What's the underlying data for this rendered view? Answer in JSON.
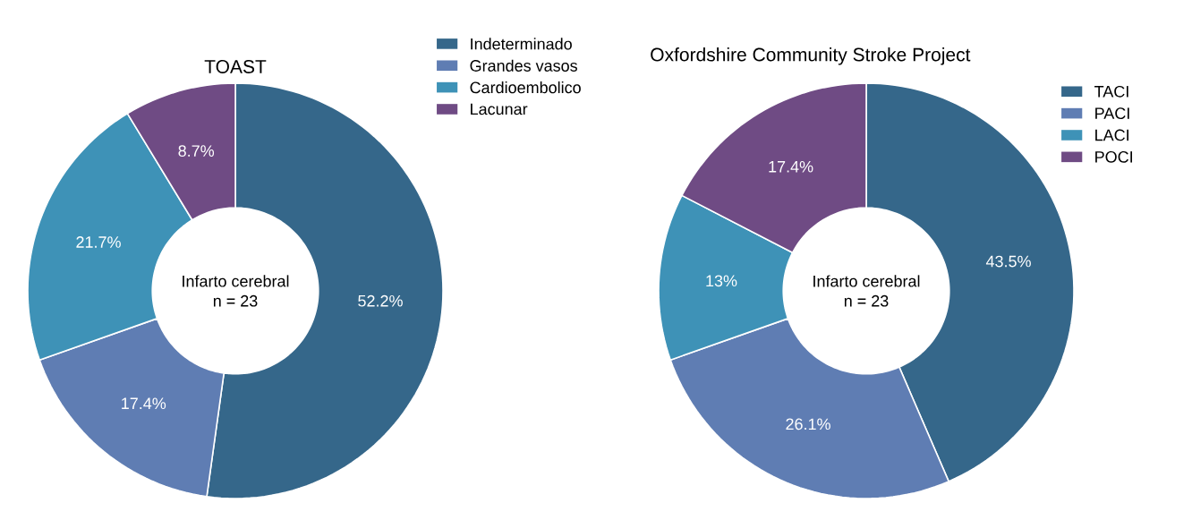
{
  "chart_data": [
    {
      "type": "donut",
      "title": "TOAST",
      "categories": [
        "Indeterminado",
        "Grandes vasos",
        "Cardioembolico",
        "Lacunar"
      ],
      "values": [
        52.2,
        17.4,
        21.7,
        8.7
      ],
      "value_labels": [
        "52.2%",
        "17.4%",
        "21.7%",
        "8.7%"
      ],
      "colors": [
        "#35678a",
        "#5f7db3",
        "#3e92b7",
        "#6f4b84"
      ],
      "annotations": [
        "Infarto cerebral",
        "n = 23"
      ],
      "legend": "top right"
    },
    {
      "type": "donut",
      "title": "Oxfordshire Community Stroke Project",
      "categories": [
        "TACI",
        "PACI",
        "LACI",
        "POCI"
      ],
      "values": [
        43.5,
        26.1,
        13,
        17.4
      ],
      "value_labels": [
        "43.5%",
        "26.1%",
        "13%",
        "17.4%"
      ],
      "colors": [
        "#35678a",
        "#5f7db3",
        "#3e92b7",
        "#6f4b84"
      ],
      "annotations": [
        "Infarto cerebral",
        "n = 23"
      ],
      "legend": "right"
    }
  ]
}
